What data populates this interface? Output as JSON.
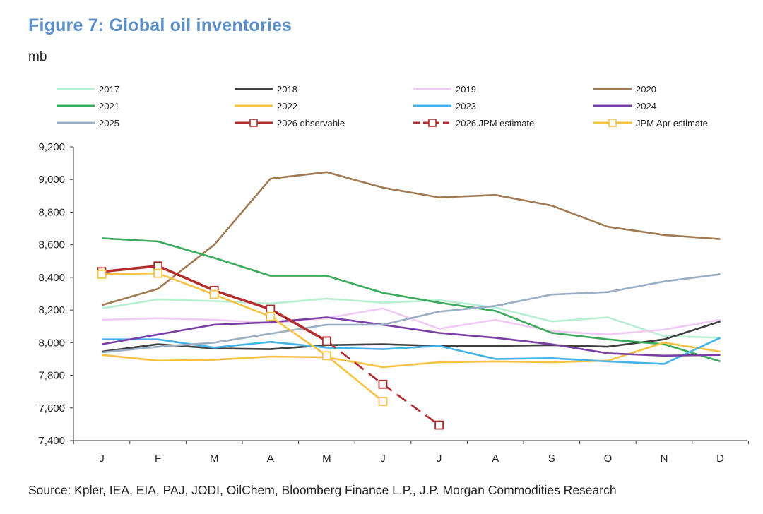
{
  "header": {
    "title": "Figure 7: Global oil inventories",
    "unit": "mb"
  },
  "footer": {
    "source": "Source: Kpler, IEA, EIA, PAJ, JODI, OilChem, Bloomberg Finance L.P., J.P. Morgan Commodities Research"
  },
  "chart_data": {
    "type": "line",
    "title": "Figure 7: Global oil inventories",
    "ylabel": "mb",
    "xlabel": "",
    "categories": [
      "J",
      "F",
      "M",
      "A",
      "M",
      "J",
      "J",
      "A",
      "S",
      "O",
      "N",
      "D"
    ],
    "ylim": [
      7400,
      9200
    ],
    "yticks": [
      7400,
      7600,
      7800,
      8000,
      8200,
      8400,
      8600,
      8800,
      9000,
      9200
    ],
    "ytick_labels": [
      "7,400",
      "7,600",
      "7,800",
      "8,000",
      "8,200",
      "8,400",
      "8,600",
      "8,800",
      "9,000",
      "9,200"
    ],
    "grid": false,
    "legend_position": "top",
    "series": [
      {
        "name": "2017",
        "color": "#b6efd2",
        "values": [
          8210,
          8265,
          8255,
          8240,
          8270,
          8245,
          8260,
          8215,
          8130,
          8155,
          8040,
          8030
        ]
      },
      {
        "name": "2018",
        "color": "#404040",
        "values": [
          7945,
          7990,
          7965,
          7960,
          7985,
          7990,
          7980,
          7980,
          7985,
          7975,
          8020,
          8130
        ]
      },
      {
        "name": "2019",
        "color": "#f0c9f5",
        "values": [
          8140,
          8150,
          8140,
          8120,
          8150,
          8210,
          8085,
          8140,
          8070,
          8050,
          8080,
          8140
        ]
      },
      {
        "name": "2020",
        "color": "#a07a52",
        "values": [
          8230,
          8330,
          8600,
          9005,
          9045,
          8950,
          8890,
          8905,
          8840,
          8710,
          8660,
          8635
        ]
      },
      {
        "name": "2021",
        "color": "#3aaa5c",
        "values": [
          8640,
          8620,
          8520,
          8410,
          8410,
          8305,
          8245,
          8195,
          8060,
          8020,
          7990,
          7885
        ]
      },
      {
        "name": "2022",
        "color": "#f5c242",
        "values": [
          7925,
          7890,
          7895,
          7915,
          7910,
          7850,
          7880,
          7885,
          7880,
          7890,
          8000,
          7945
        ]
      },
      {
        "name": "2023",
        "color": "#45b3e8",
        "values": [
          8020,
          8020,
          7970,
          8005,
          7970,
          7960,
          7980,
          7900,
          7905,
          7885,
          7870,
          8030
        ]
      },
      {
        "name": "2024",
        "color": "#7a3fa6",
        "values": [
          7990,
          8050,
          8110,
          8125,
          8155,
          8110,
          8060,
          8030,
          7990,
          7935,
          7920,
          7925
        ]
      },
      {
        "name": "2025",
        "color": "#9aaec4",
        "values": [
          7940,
          7975,
          8000,
          8055,
          8110,
          8110,
          8190,
          8225,
          8295,
          8310,
          8375,
          8420
        ]
      },
      {
        "name": "2026 observable",
        "color": "#b32d2e",
        "dash": "solid",
        "marker": "square",
        "width": 3.6,
        "values": [
          8435,
          8470,
          8320,
          8205,
          8010,
          null,
          null,
          null,
          null,
          null,
          null,
          null
        ]
      },
      {
        "name": "2026 JPM estimate",
        "color": "#b32d2e",
        "dash": "dashed",
        "marker": "square",
        "width": 2.6,
        "values": [
          null,
          null,
          null,
          null,
          8010,
          7745,
          7495,
          null,
          null,
          null,
          null,
          null
        ]
      },
      {
        "name": "JPM Apr estimate",
        "color": "#f5c242",
        "dash": "solid",
        "marker": "square",
        "width": 2.6,
        "values": [
          8420,
          8425,
          8295,
          8160,
          7920,
          7640,
          null,
          null,
          null,
          null,
          null,
          null
        ]
      }
    ]
  }
}
